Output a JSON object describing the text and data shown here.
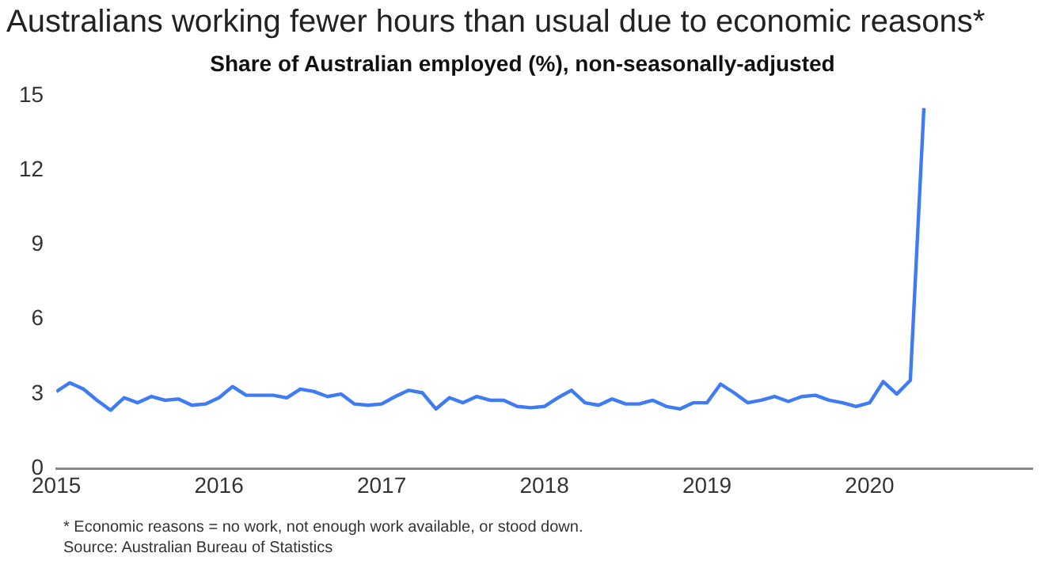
{
  "chart_data": {
    "type": "line",
    "title": "Australians working fewer hours than usual due to economic reasons*",
    "subtitle": "Share of Australian employed (%), non-seasonally-adjusted",
    "x": [
      "2015-01",
      "2015-02",
      "2015-03",
      "2015-04",
      "2015-05",
      "2015-06",
      "2015-07",
      "2015-08",
      "2015-09",
      "2015-10",
      "2015-11",
      "2015-12",
      "2016-01",
      "2016-02",
      "2016-03",
      "2016-04",
      "2016-05",
      "2016-06",
      "2016-07",
      "2016-08",
      "2016-09",
      "2016-10",
      "2016-11",
      "2016-12",
      "2017-01",
      "2017-02",
      "2017-03",
      "2017-04",
      "2017-05",
      "2017-06",
      "2017-07",
      "2017-08",
      "2017-09",
      "2017-10",
      "2017-11",
      "2017-12",
      "2018-01",
      "2018-02",
      "2018-03",
      "2018-04",
      "2018-05",
      "2018-06",
      "2018-07",
      "2018-08",
      "2018-09",
      "2018-10",
      "2018-11",
      "2018-12",
      "2019-01",
      "2019-02",
      "2019-03",
      "2019-04",
      "2019-05",
      "2019-06",
      "2019-07",
      "2019-08",
      "2019-09",
      "2019-10",
      "2019-11",
      "2019-12",
      "2020-01",
      "2020-02",
      "2020-03",
      "2020-04",
      "2020-05"
    ],
    "series": [
      {
        "color": "#3f7cf4",
        "values": [
          3.1,
          3.45,
          3.2,
          2.75,
          2.35,
          2.85,
          2.65,
          2.9,
          2.75,
          2.8,
          2.55,
          2.6,
          2.85,
          3.3,
          2.95,
          2.95,
          2.95,
          2.85,
          3.2,
          3.1,
          2.9,
          3.0,
          2.6,
          2.55,
          2.6,
          2.9,
          3.15,
          3.05,
          2.4,
          2.85,
          2.65,
          2.9,
          2.75,
          2.75,
          2.5,
          2.45,
          2.5,
          2.85,
          3.15,
          2.65,
          2.55,
          2.8,
          2.6,
          2.6,
          2.75,
          2.5,
          2.4,
          2.65,
          2.65,
          3.4,
          3.05,
          2.65,
          2.75,
          2.9,
          2.7,
          2.9,
          2.95,
          2.75,
          2.65,
          2.5,
          2.65,
          3.5,
          3.0,
          3.55,
          14.5
        ]
      }
    ],
    "xlim": [
      "2015-01",
      "2021-01"
    ],
    "xticks": [
      {
        "value": "2015-01",
        "label": "2015"
      },
      {
        "value": "2016-01",
        "label": "2016"
      },
      {
        "value": "2017-01",
        "label": "2017"
      },
      {
        "value": "2018-01",
        "label": "2018"
      },
      {
        "value": "2019-01",
        "label": "2019"
      },
      {
        "value": "2020-01",
        "label": "2020"
      }
    ],
    "ylim": [
      0,
      15
    ],
    "yticks": [
      0,
      3,
      6,
      9,
      12,
      15
    ],
    "grid": false,
    "legend": false,
    "marker": "none",
    "line_style": "solid",
    "annotations": [
      "* Economic reasons = no work, not enough work available,  or stood down.",
      "Source: Australian Bureau of Statistics"
    ]
  }
}
